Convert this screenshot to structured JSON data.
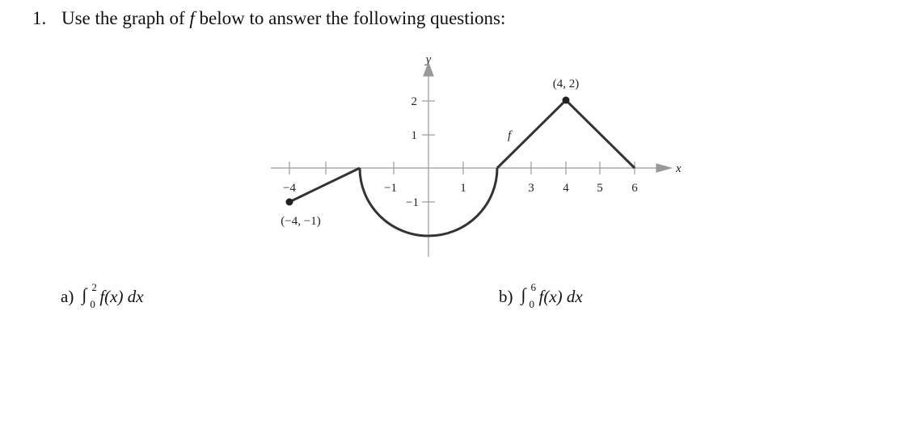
{
  "question": {
    "number": "1.",
    "text_before": "Use the graph of ",
    "variable": "f",
    "text_after": " below to answer the following questions:"
  },
  "graph": {
    "x_label": "x",
    "y_label": "y",
    "function_label": "f",
    "x_tick_labels": [
      "−4",
      "−1",
      "1",
      "3",
      "4",
      "5",
      "6"
    ],
    "y_tick_labels": [
      "2",
      "1",
      "−1"
    ],
    "point_labels": [
      "(4, 2)",
      "(−4, −1)"
    ]
  },
  "parts": [
    {
      "label": "a)",
      "lower": "0",
      "upper": "2",
      "integrand": "f(x) dx"
    },
    {
      "label": "b)",
      "lower": "0",
      "upper": "6",
      "integrand": "f(x) dx"
    }
  ]
}
